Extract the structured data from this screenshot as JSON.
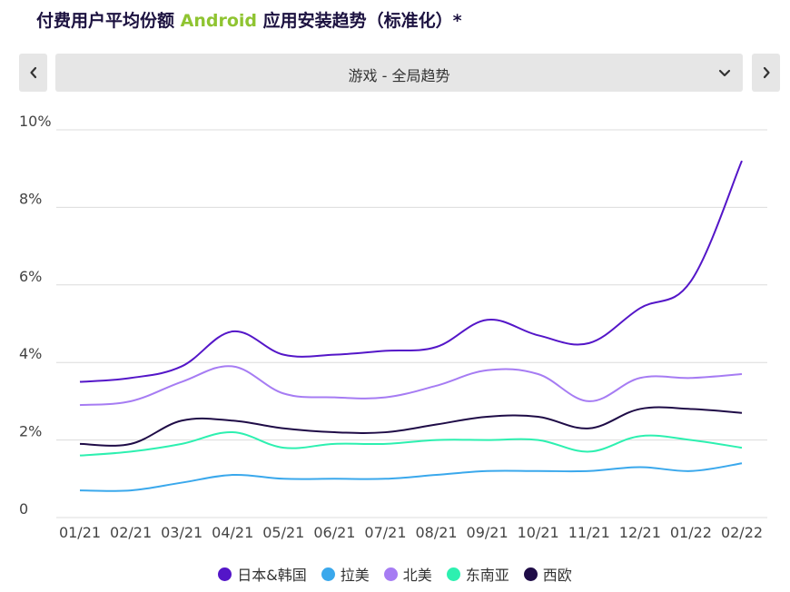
{
  "title": {
    "prefix": "付费用户平均份额 ",
    "highlight": "Android",
    "suffix": " 应用安装趋势（标准化）*"
  },
  "nav": {
    "dropdown_value": "游戏 - 全局趋势",
    "prev_icon": "chevron-left-icon",
    "next_icon": "chevron-right-icon"
  },
  "chart_data": {
    "type": "line",
    "categories": [
      "01/21",
      "02/21",
      "03/21",
      "04/21",
      "05/21",
      "06/21",
      "07/21",
      "08/21",
      "09/21",
      "10/21",
      "11/21",
      "12/21",
      "01/22",
      "02/22"
    ],
    "y_ticks": [
      "0",
      "2%",
      "4%",
      "6%",
      "8%",
      "10%"
    ],
    "ylim": [
      0,
      10
    ],
    "grid": true,
    "legend_position": "bottom",
    "series": [
      {
        "name": "日本&韩国",
        "color": "#5416c8",
        "values": [
          3.5,
          3.6,
          3.9,
          4.8,
          4.2,
          4.2,
          4.3,
          4.4,
          5.1,
          4.7,
          4.5,
          5.4,
          6.1,
          9.2
        ]
      },
      {
        "name": "拉美",
        "color": "#3aa8ec",
        "values": [
          0.7,
          0.7,
          0.9,
          1.1,
          1.0,
          1.0,
          1.0,
          1.1,
          1.2,
          1.2,
          1.2,
          1.3,
          1.2,
          1.4
        ]
      },
      {
        "name": "北美",
        "color": "#a67cf3",
        "values": [
          2.9,
          3.0,
          3.5,
          3.9,
          3.2,
          3.1,
          3.1,
          3.4,
          3.8,
          3.7,
          3.0,
          3.6,
          3.6,
          3.7
        ]
      },
      {
        "name": "东南亚",
        "color": "#2df0b0",
        "values": [
          1.6,
          1.7,
          1.9,
          2.2,
          1.8,
          1.9,
          1.9,
          2.0,
          2.0,
          2.0,
          1.7,
          2.1,
          2.0,
          1.8
        ]
      },
      {
        "name": "西欧",
        "color": "#1f0c47",
        "values": [
          1.9,
          1.9,
          2.5,
          2.5,
          2.3,
          2.2,
          2.2,
          2.4,
          2.6,
          2.6,
          2.3,
          2.8,
          2.8,
          2.7
        ]
      }
    ]
  }
}
